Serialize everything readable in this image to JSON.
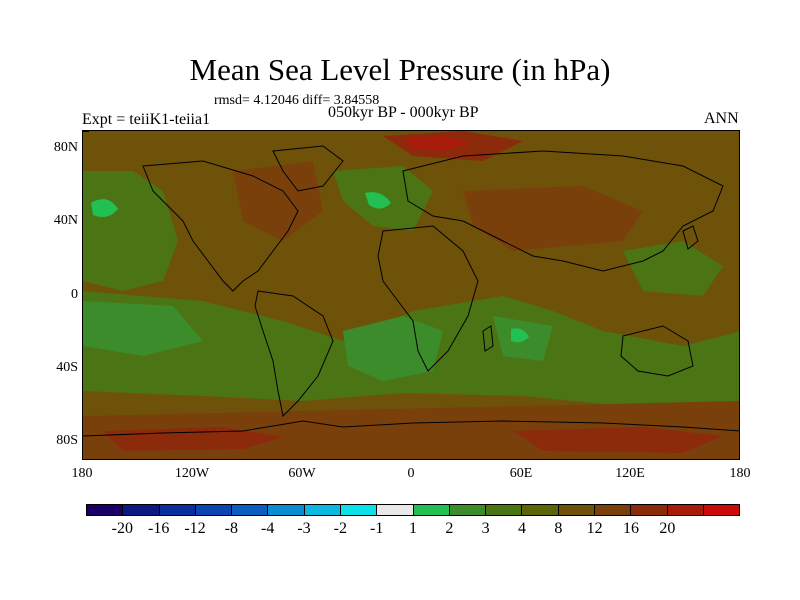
{
  "title": "Mean Sea Level Pressure (in hPa)",
  "stats_text": "rmsd= 4.12046 diff= 3.84558",
  "left_label": "Expt = teiiK1-teiia1",
  "center_label": "050kyr BP - 000kyr BP",
  "right_label": "ANN",
  "lat_ticks": [
    "80N",
    "40N",
    "0",
    "40S",
    "80S"
  ],
  "lon_ticks": [
    "180",
    "120W",
    "60W",
    "0",
    "60E",
    "120E",
    "180"
  ],
  "colorbar": {
    "colors": [
      "#1a0066",
      "#0a1a80",
      "#0a2e9e",
      "#0a45b2",
      "#0a5ec0",
      "#0a8cd0",
      "#0ab8e0",
      "#0de0e8",
      "#e8e8e8",
      "#22c052",
      "#3d8c2c",
      "#4b7414",
      "#5c6608",
      "#6e520a",
      "#7a400c",
      "#8c2a0c",
      "#a81a0a",
      "#cc0a0a"
    ],
    "labels": [
      "-20",
      "-16",
      "-12",
      "-8",
      "-4",
      "-3",
      "-2",
      "-1",
      "1",
      "2",
      "3",
      "4",
      "8",
      "12",
      "16",
      "20"
    ]
  },
  "map_colors": {
    "base": "#6e520a",
    "level_3": "#4b7414",
    "level_2": "#3d8c2c",
    "level_1": "#22c052",
    "level_8": "#7a400c",
    "level_12": "#8c2a0c",
    "level_16": "#a81a0a",
    "coast": "#000000"
  }
}
